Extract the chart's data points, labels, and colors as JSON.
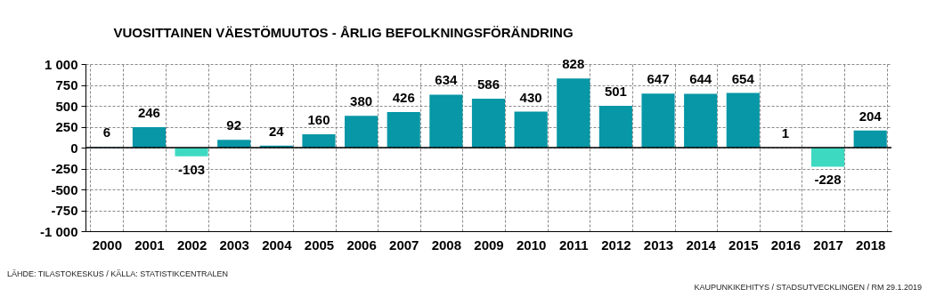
{
  "chart_data": {
    "type": "bar",
    "title": "VUOSITTAINEN VÄESTÖMUUTOS - ÅRLIG BEFOLKNINGSFÖRÄNDRING",
    "categories": [
      "2000",
      "2001",
      "2002",
      "2003",
      "2004",
      "2005",
      "2006",
      "2007",
      "2008",
      "2009",
      "2010",
      "2011",
      "2012",
      "2013",
      "2014",
      "2015",
      "2016",
      "2017",
      "2018"
    ],
    "values": [
      6,
      246,
      -103,
      92,
      24,
      160,
      380,
      426,
      634,
      586,
      430,
      828,
      501,
      647,
      644,
      654,
      1,
      -228,
      204
    ],
    "colors": [
      "#0797a6",
      "#0797a6",
      "#3dd9c1",
      "#0797a6",
      "#0797a6",
      "#0797a6",
      "#0797a6",
      "#0797a6",
      "#0797a6",
      "#0797a6",
      "#0797a6",
      "#0797a6",
      "#0797a6",
      "#0797a6",
      "#0797a6",
      "#0797a6",
      "#0797a6",
      "#3dd9c1",
      "#0797a6"
    ],
    "ylim": [
      -1000,
      1000
    ],
    "yticks": [
      {
        "value": -1000,
        "label": "-1 000"
      },
      -750,
      -500,
      -250,
      0,
      250,
      500,
      750,
      {
        "value": 1000,
        "label": "1 000"
      }
    ],
    "grid": true,
    "data_labels": true,
    "ref_lines": [
      {
        "axis": "y",
        "value": 0,
        "color": "#000000"
      }
    ],
    "annotations": [
      "LÄHDE: TILASTOKESKUS  / KÄLLA: STATISTIKCENTRALEN",
      "KAUPUNKIKEHITYS / STADSUTVECKLINGEN  / RM 29.1.2019"
    ]
  }
}
